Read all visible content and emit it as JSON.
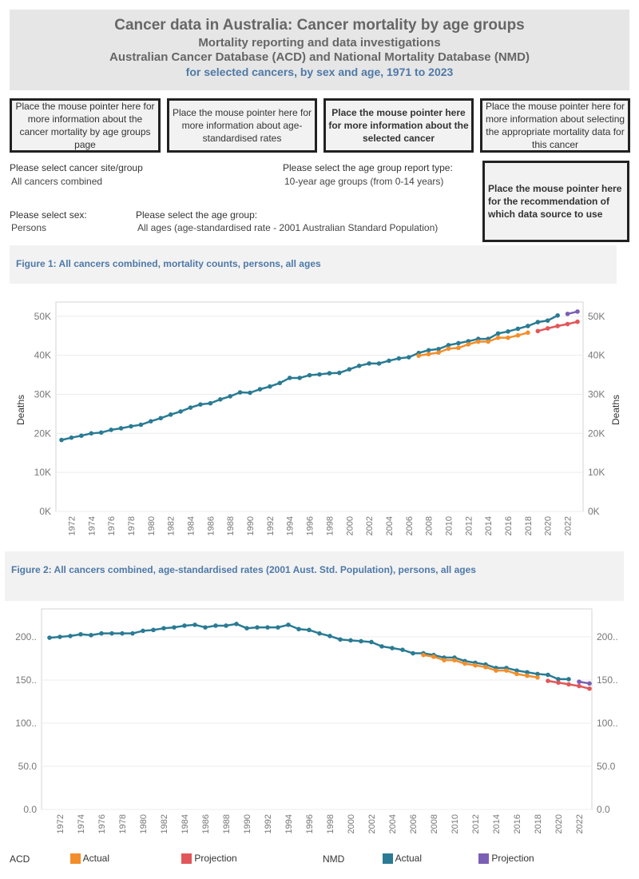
{
  "header": {
    "title": "Cancer data in Australia: Cancer mortality by age groups",
    "subtitle1": "Mortality reporting and data investigations",
    "subtitle2": "Australian Cancer Database (ACD) and National Mortality Database (NMD)",
    "subtitle3": "for selected cancers, by sex and age, 1971 to 2023"
  },
  "info_boxes": [
    "Place the mouse pointer here for more information about the cancer mortality by age  groups page",
    "Place the mouse pointer here for more information about age-standardised rates",
    "Place the mouse pointer here for more information about the selected cancer",
    "Place the mouse pointer here for more information about selecting the appropriate mortality data for this cancer",
    "Place the mouse pointer here for the recommendation of which data source to use"
  ],
  "filters": {
    "site_label": "Please select cancer site/group",
    "site_value": "All cancers combined",
    "report_label": "Please select the age group report type:",
    "report_value": "10-year age groups (from 0-14 years)",
    "sex_label": "Please select sex:",
    "sex_value": "Persons",
    "age_label": "Please select the age group:",
    "age_value": "All ages (age-standardised rate - 2001 Australian Standard Population)"
  },
  "legend": {
    "acd": "ACD",
    "nmd": "NMD",
    "actual": "Actual",
    "projection": "Projection",
    "colors": {
      "acd_actual": "#f28e2b",
      "acd_projection": "#e15759",
      "nmd_actual": "#2a7b93",
      "nmd_projection": "#7b5fb5"
    }
  },
  "chart_data": [
    {
      "type": "line",
      "title": "Figure 1: All cancers combined, mortality counts, persons, all ages",
      "ylabel": "Deaths",
      "ylim": [
        0,
        52000
      ],
      "yticks": [
        0,
        10000,
        20000,
        30000,
        40000,
        50000
      ],
      "ytick_labels": [
        "0K",
        "10K",
        "20K",
        "30K",
        "40K",
        "50K"
      ],
      "xticks": [
        1972,
        1974,
        1976,
        1978,
        1980,
        1982,
        1984,
        1986,
        1988,
        1990,
        1992,
        1994,
        1996,
        1998,
        2000,
        2002,
        2004,
        2006,
        2008,
        2010,
        2012,
        2014,
        2016,
        2018,
        2020,
        2022
      ],
      "grid": true,
      "series": [
        {
          "key": "nmd_actual",
          "start": 1971,
          "values": [
            18300,
            18900,
            19400,
            20000,
            20200,
            20900,
            21300,
            21800,
            22200,
            23100,
            23900,
            24800,
            25600,
            26600,
            27400,
            27700,
            28700,
            29500,
            30500,
            30400,
            31300,
            32000,
            32900,
            34200,
            34200,
            34900,
            35100,
            35400,
            35500,
            36400,
            37300,
            37900,
            37900,
            38600,
            39200,
            39500,
            40600,
            41300,
            41600,
            42600,
            43100,
            43600,
            44200,
            44200,
            45600,
            46100,
            46800,
            47500,
            48500,
            48900,
            50200
          ]
        },
        {
          "key": "nmd_projection",
          "start": 2022,
          "values": [
            50600,
            51200
          ]
        },
        {
          "key": "acd_actual",
          "start": 2007,
          "values": [
            39900,
            40300,
            40700,
            41700,
            41900,
            42800,
            43500,
            43500,
            44500,
            44500,
            45100,
            45800
          ]
        },
        {
          "key": "acd_projection",
          "start": 2019,
          "values": [
            46200,
            46900,
            47500,
            48000,
            48600
          ]
        }
      ]
    },
    {
      "type": "line",
      "title": "Figure 2: All cancers combined, age-standardised rates (2001 Aust. Std. Population), persons, all ages",
      "ylim": [
        0,
        225
      ],
      "yticks": [
        0,
        50,
        100,
        150,
        200
      ],
      "ytick_labels": [
        "0.0",
        "50.0",
        "100..",
        "150..",
        "200.."
      ],
      "xticks": [
        1972,
        1974,
        1976,
        1978,
        1980,
        1982,
        1984,
        1986,
        1988,
        1990,
        1992,
        1994,
        1996,
        1998,
        2000,
        2002,
        2004,
        2006,
        2008,
        2010,
        2012,
        2014,
        2016,
        2018,
        2020,
        2022
      ],
      "grid": true,
      "series": [
        {
          "key": "nmd_actual",
          "start": 1971,
          "values": [
            199,
            200,
            201,
            203,
            202,
            204,
            204,
            204,
            204,
            207,
            208,
            210,
            211,
            213,
            214,
            211,
            213,
            213,
            215,
            210,
            211,
            211,
            211,
            214,
            209,
            208,
            204,
            201,
            197,
            196,
            195,
            194,
            189,
            187,
            185,
            181,
            181,
            179,
            176,
            176,
            172,
            170,
            168,
            164,
            164,
            161,
            159,
            157,
            156,
            151,
            151
          ]
        },
        {
          "key": "nmd_projection",
          "start": 2022,
          "values": [
            148,
            146
          ]
        },
        {
          "key": "acd_actual",
          "start": 2007,
          "values": [
            179,
            177,
            173,
            173,
            169,
            167,
            165,
            161,
            161,
            157,
            155,
            153
          ]
        },
        {
          "key": "acd_projection",
          "start": 2019,
          "values": [
            149,
            147,
            145,
            143,
            140
          ]
        }
      ]
    }
  ]
}
